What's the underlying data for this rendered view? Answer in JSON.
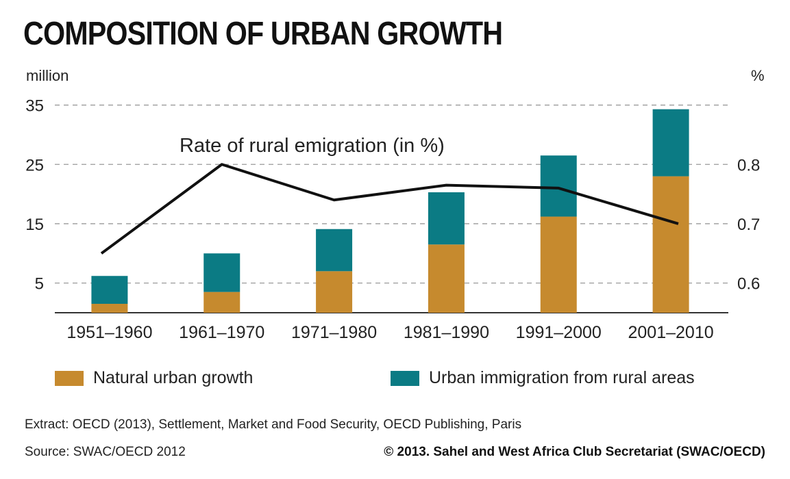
{
  "title": "COMPOSITION OF URBAN GROWTH",
  "left_unit": "million",
  "right_unit": "%",
  "colors": {
    "natural": "#c68a2e",
    "immigration": "#0b7b84",
    "line": "#111111",
    "grid": "#999999"
  },
  "legend": {
    "natural": "Natural urban growth",
    "immigration": "Urban immigration from rural areas"
  },
  "footer": {
    "extract": "Extract: OECD (2013), Settlement, Market and Food Security, OECD Publishing, Paris",
    "source": "Source: SWAC/OECD 2012",
    "copyright": "© 2013. Sahel and West Africa Club Secretariat (SWAC/OECD)"
  },
  "chart_data": {
    "type": "bar",
    "stacked": true,
    "categories": [
      "1951–1960",
      "1961–1970",
      "1971–1980",
      "1981–1990",
      "1991–2000",
      "2001–2010"
    ],
    "series": [
      {
        "name": "Natural urban growth",
        "values": [
          1.5,
          3.5,
          7.0,
          11.5,
          16.2,
          23.0
        ]
      },
      {
        "name": "Urban immigration from rural areas",
        "values": [
          4.7,
          6.5,
          7.1,
          8.8,
          10.3,
          11.3
        ]
      }
    ],
    "line_series": {
      "name": "Rate of rural emigration (in %)",
      "values": [
        0.65,
        0.8,
        0.74,
        0.765,
        0.76,
        0.7
      ]
    },
    "y_left": {
      "label": "million",
      "ticks": [
        5,
        15,
        25,
        35
      ],
      "lim": [
        0,
        35
      ]
    },
    "y_right": {
      "label": "%",
      "ticks": [
        "0.6",
        "0.7",
        "0.8"
      ]
    },
    "grid": true
  }
}
